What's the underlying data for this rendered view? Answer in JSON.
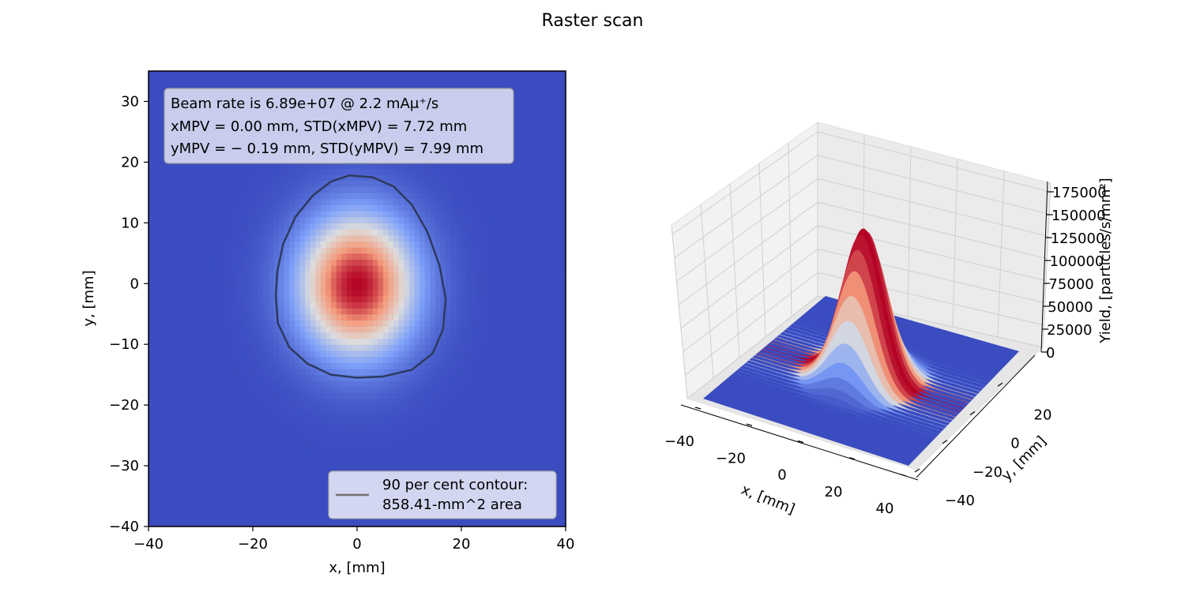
{
  "figure_title": "Raster scan",
  "chart_data": [
    {
      "type": "heatmap",
      "xlabel": "x, [mm]",
      "ylabel": "y, [mm]",
      "xlim": [
        -40,
        40
      ],
      "ylim": [
        -40,
        35
      ],
      "xticks": [
        "−40",
        "−20",
        "0",
        "20",
        "40"
      ],
      "xtick_values": [
        -40,
        -20,
        0,
        20,
        40
      ],
      "yticks": [
        "−40",
        "−30",
        "−20",
        "−10",
        "0",
        "10",
        "20",
        "30"
      ],
      "ytick_values": [
        -40,
        -30,
        -20,
        -10,
        0,
        10,
        20,
        30
      ],
      "colormap": "coolwarm",
      "peak": {
        "x": 0.0,
        "y": -0.19
      },
      "std": {
        "x": 7.72,
        "y": 7.99
      },
      "info_box": {
        "line1": "Beam rate is 6.89e+07 @ 2.2 mAμ⁺/s",
        "line2": "xMPV = 0.00 mm, STD(xMPV) = 7.72 mm",
        "line3": "yMPV = − 0.19 mm, STD(yMPV) = 7.99 mm"
      },
      "contour": {
        "color": "#2e3a5f",
        "points": [
          [
            -1.5,
            17.8
          ],
          [
            3,
            17.5
          ],
          [
            7,
            16
          ],
          [
            10.5,
            13
          ],
          [
            13.5,
            8.5
          ],
          [
            15.8,
            3
          ],
          [
            17,
            -2.5
          ],
          [
            16.5,
            -7.5
          ],
          [
            14.5,
            -11.5
          ],
          [
            10.5,
            -14.2
          ],
          [
            5,
            -15.3
          ],
          [
            0,
            -15.5
          ],
          [
            -5,
            -15
          ],
          [
            -9.5,
            -13.2
          ],
          [
            -13,
            -10.5
          ],
          [
            -15.2,
            -6.5
          ],
          [
            -15.6,
            -2
          ],
          [
            -15.3,
            2
          ],
          [
            -14.2,
            6.5
          ],
          [
            -11.8,
            11
          ],
          [
            -8.5,
            14.5
          ],
          [
            -5,
            16.8
          ],
          [
            -1.5,
            17.8
          ]
        ]
      },
      "legend": {
        "label_line1": "90 per cent contour:",
        "label_line2": "858.41-mm^2 area",
        "placement": "lower-right"
      }
    },
    {
      "type": "surface",
      "xlabel": "x, [mm]",
      "ylabel": "y, [mm]",
      "zlabel": "Yield, [particles/s/mm²]",
      "xticks": [
        "−40",
        "−20",
        "0",
        "20",
        "40"
      ],
      "yticks": [
        "−40",
        "−20",
        "0",
        "20"
      ],
      "zticks": [
        "0",
        "25000",
        "50000",
        "75000",
        "100000",
        "125000",
        "150000",
        "175000"
      ],
      "zlim": [
        0,
        185000
      ],
      "peak_value": 165000,
      "colormap": "coolwarm"
    }
  ],
  "colors": {
    "cool": "#3b4cc0",
    "mid": "#dddddd",
    "warm": "#b40426",
    "contour": "#2e3a5f"
  }
}
